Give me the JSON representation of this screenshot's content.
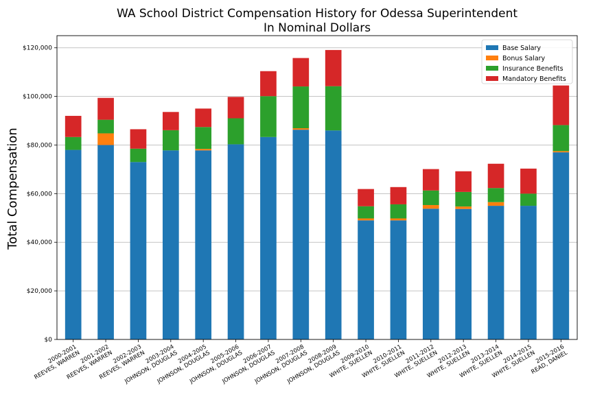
{
  "chart_data": {
    "type": "bar",
    "stacked": true,
    "title": "WA School District Compensation History for Odessa Superintendent",
    "subtitle": "In Nominal Dollars",
    "ylabel": "Total Compensation",
    "xlabel": "",
    "ylim": [
      0,
      125000
    ],
    "yticks": [
      0,
      20000,
      40000,
      60000,
      80000,
      100000,
      120000
    ],
    "ytick_labels": [
      "$0",
      "$20,000",
      "$40,000",
      "$60,000",
      "$80,000",
      "$100,000",
      "$120,000"
    ],
    "grid": "horizontal",
    "legend_position": "top-right",
    "categories": [
      [
        "2000-2001",
        "REEVES, WARREN"
      ],
      [
        "2001-2002",
        "REEVES, WARREN"
      ],
      [
        "2002-2003",
        "REEVES, WARREN"
      ],
      [
        "2003-2004",
        "JOHNSON, DOUGLAS"
      ],
      [
        "2004-2005",
        "JOHNSON, DOUGLAS"
      ],
      [
        "2005-2006",
        "JOHNSON, DOUGLAS"
      ],
      [
        "2006-2007",
        "JOHNSON, DOUGLAS"
      ],
      [
        "2007-2008",
        "JOHNSON, DOUGLAS"
      ],
      [
        "2008-2009",
        "JOHNSON, DOUGLAS"
      ],
      [
        "2009-2010",
        "WHITE, SUELLEN"
      ],
      [
        "2010-2011",
        "WHITE, SUELLEN"
      ],
      [
        "2011-2012",
        "WHITE, SUELLEN"
      ],
      [
        "2012-2013",
        "WHITE, SUELLEN"
      ],
      [
        "2013-2014",
        "WHITE, SUELLEN"
      ],
      [
        "2014-2015",
        "WHITE, SUELLEN"
      ],
      [
        "2015-2016",
        "READ, DANIEL"
      ]
    ],
    "series": [
      {
        "name": "Base Salary",
        "color": "#1f77b4",
        "values": [
          78000,
          80000,
          73000,
          77800,
          77800,
          80300,
          83300,
          86300,
          86000,
          49000,
          49000,
          53800,
          53700,
          55000,
          55000,
          77000
        ]
      },
      {
        "name": "Bonus Salary",
        "color": "#ff7f0e",
        "values": [
          0,
          4800,
          0,
          0,
          600,
          0,
          0,
          600,
          0,
          800,
          800,
          1500,
          1000,
          1500,
          0,
          500
        ]
      },
      {
        "name": "Insurance Benefits",
        "color": "#2ca02c",
        "values": [
          5300,
          5600,
          5500,
          8300,
          9000,
          10700,
          16800,
          17200,
          18200,
          5000,
          5800,
          6000,
          6000,
          5800,
          5000,
          10700
        ]
      },
      {
        "name": "Mandatory Benefits",
        "color": "#d62728",
        "values": [
          8700,
          9000,
          8000,
          7500,
          7600,
          8800,
          10300,
          11700,
          14900,
          7100,
          7100,
          8800,
          8500,
          10000,
          10300,
          16300
        ]
      }
    ]
  }
}
